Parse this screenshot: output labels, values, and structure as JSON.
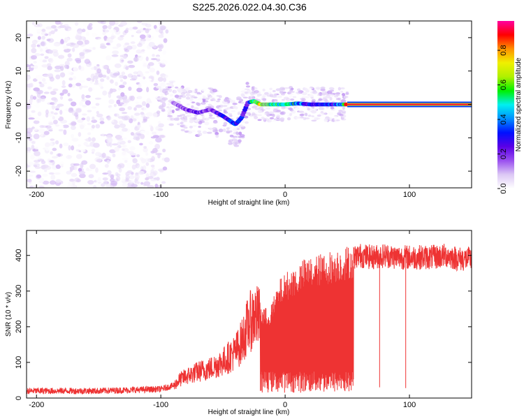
{
  "chart_data": [
    {
      "type": "heatmap",
      "title": "S225.2026.022.04.30.C36",
      "xlabel": "Height of straight line (km)",
      "ylabel": "Frequency (Hz)",
      "xlim": [
        -208,
        150
      ],
      "ylim": [
        -25,
        25
      ],
      "xticks": [
        -200,
        -100,
        0,
        100
      ],
      "yticks": [
        -20,
        -10,
        0,
        10,
        20
      ],
      "colorbar": {
        "label": "Normalized spectral amplitude",
        "range": [
          0.0,
          0.97
        ],
        "ticks": [
          0.0,
          0.2,
          0.4,
          0.6,
          0.8
        ],
        "colormap": [
          "#ffffff",
          "#dcc8f5",
          "#9a50ef",
          "#5a00e6",
          "#0010ff",
          "#0090ff",
          "#00f0f0",
          "#00f000",
          "#b0f000",
          "#f0f000",
          "#ff9000",
          "#ff0000",
          "#ff00a0"
        ]
      },
      "ridge": {
        "x": [
          -90,
          -80,
          -70,
          -60,
          -50,
          -40,
          -35,
          -30,
          -25,
          -20,
          -10,
          0,
          10,
          20,
          30,
          40,
          45,
          50,
          70,
          90,
          110,
          130,
          150
        ],
        "y": [
          0.5,
          -1.5,
          -2.5,
          -1.5,
          -3.5,
          -6.0,
          -4.0,
          0.5,
          1.0,
          0.0,
          0.0,
          0.0,
          0.3,
          0.0,
          0.0,
          0.0,
          0.0,
          0.0,
          0.0,
          0.0,
          0.0,
          0.0,
          0.0
        ],
        "amplitude": [
          0.15,
          0.2,
          0.25,
          0.2,
          0.3,
          0.35,
          0.3,
          0.25,
          0.6,
          0.8,
          0.55,
          0.5,
          0.5,
          0.3,
          0.3,
          0.35,
          0.4,
          0.85,
          0.9,
          0.9,
          0.9,
          0.9,
          0.9
        ]
      },
      "noise_region": {
        "x": [
          -208,
          -95
        ],
        "y": [
          -25,
          25
        ],
        "amplitude_max": 0.1
      }
    },
    {
      "type": "line",
      "xlabel": "Height of straight line (km)",
      "ylabel": "SNR (10 * v/v)",
      "xlim": [
        -208,
        150
      ],
      "ylim": [
        0,
        470
      ],
      "xticks": [
        -200,
        -100,
        0,
        100
      ],
      "yticks": [
        0,
        100,
        200,
        300,
        400
      ],
      "line_color": "#ee3333",
      "series": [
        {
          "x": [
            -208,
            -150,
            -100,
            -90,
            -85,
            -80,
            -70,
            -60,
            -50,
            -40,
            -35,
            -30,
            -25,
            -20,
            -15,
            -10,
            -5,
            0,
            5,
            10,
            15,
            20,
            25,
            30,
            35,
            40,
            45,
            50,
            55,
            60,
            70,
            80,
            90,
            100,
            110,
            120,
            130,
            140,
            150
          ],
          "y": [
            20,
            20,
            25,
            35,
            55,
            65,
            80,
            90,
            110,
            140,
            170,
            220,
            250,
            240,
            230,
            250,
            300,
            320,
            330,
            340,
            355,
            360,
            365,
            370,
            375,
            380,
            385,
            390,
            395,
            400,
            395,
            400,
            395,
            395,
            395,
            395,
            400,
            390,
            390
          ]
        }
      ],
      "dropouts": [
        {
          "x": 76,
          "y": 30
        },
        {
          "x": 97,
          "y": 28
        }
      ]
    }
  ]
}
